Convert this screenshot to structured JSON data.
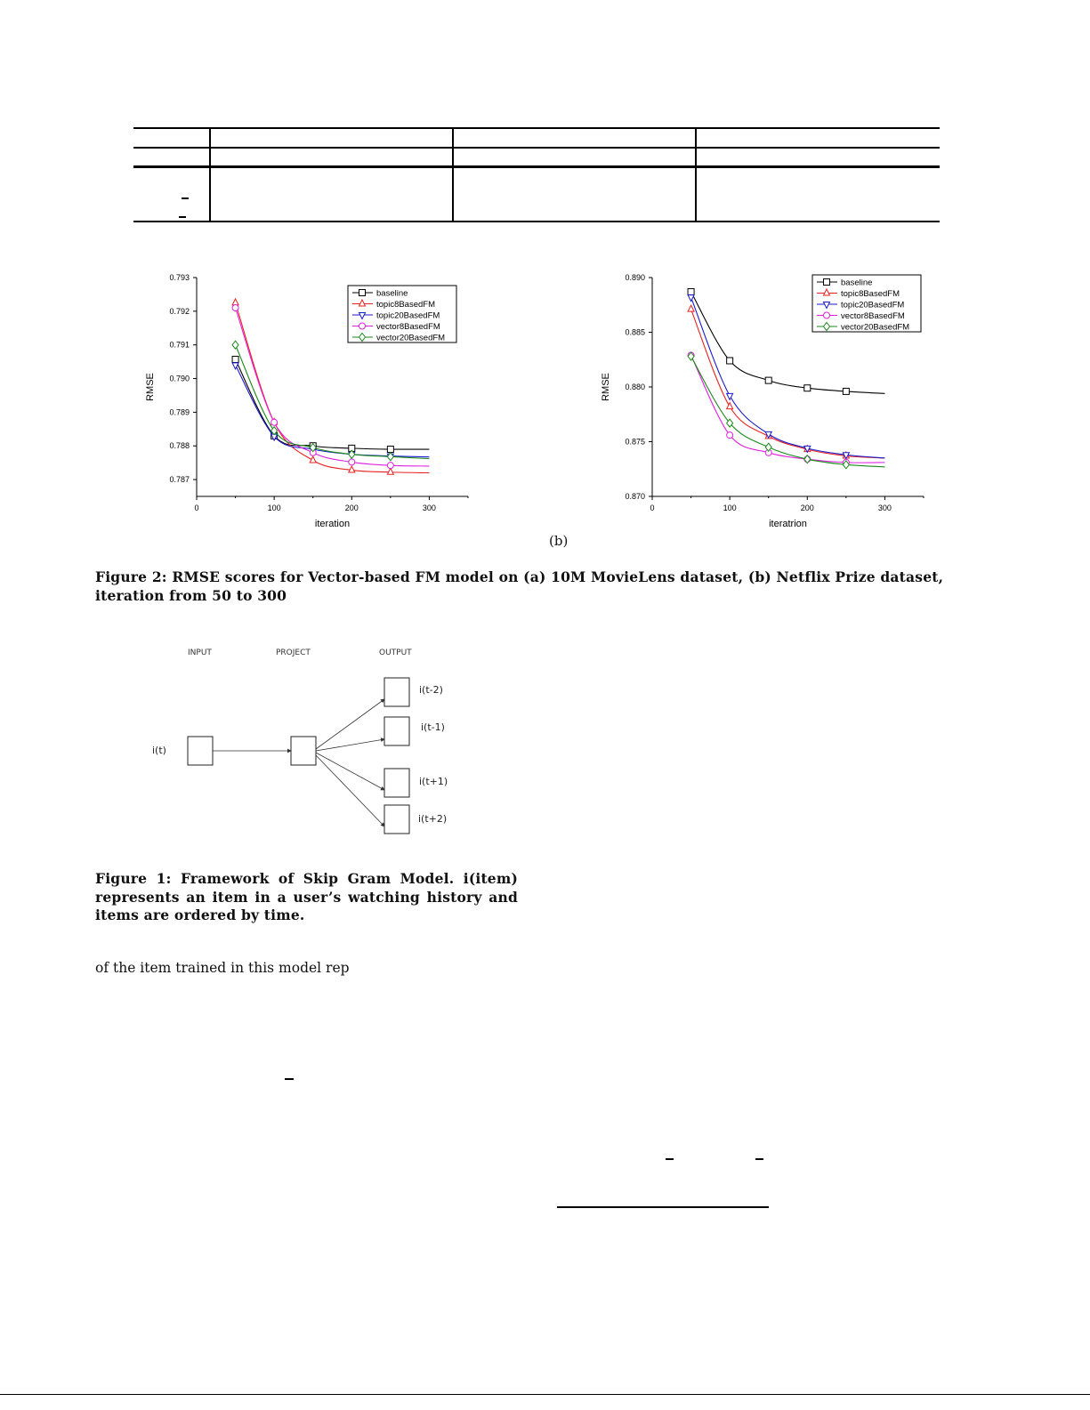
{
  "figure2": {
    "subcaption_b": "(b)",
    "caption": "Figure 2: RMSE scores for Vector-based FM model on (a) 10M MovieLens dataset, (b) Netflix Prize dataset, iteration from 50 to 300"
  },
  "figure1": {
    "caption": "Figure 1: Framework of Skip Gram Model. i(item) represents an item in a user’s watching history and items are ordered by time.",
    "headers": [
      "INPUT",
      "PROJECT",
      "OUTPUT"
    ],
    "input_label": "i(t)",
    "output_labels": [
      "i(t-2)",
      "i(t-1)",
      "i(t+1)",
      "i(t+2)"
    ]
  },
  "body_text": "of the item trained in this model rep",
  "chart_data": [
    {
      "type": "line",
      "xlabel": "iteration",
      "ylabel": "RMSE",
      "xlim": [
        0,
        350
      ],
      "ylim": [
        0.7865,
        0.793
      ],
      "xticks": [
        0,
        100,
        200,
        300
      ],
      "yticks": [
        "0.787",
        "0.788",
        "0.789",
        "0.790",
        "0.791",
        "0.792",
        "0.793"
      ],
      "legend": "top-right",
      "grid": false,
      "x": [
        50,
        100,
        150,
        200,
        250,
        300
      ],
      "series": [
        {
          "name": "baseline",
          "color": "#000000",
          "marker": "square",
          "values": [
            0.79057,
            0.7883,
            0.788,
            0.78793,
            0.7879,
            0.7879
          ]
        },
        {
          "name": "topic8BasedFM",
          "color": "#e8231f",
          "marker": "triangle-up",
          "values": [
            0.79225,
            0.7887,
            0.78757,
            0.78728,
            0.78722,
            0.7872
          ]
        },
        {
          "name": "topic20BasedFM",
          "color": "#1a1ad0",
          "marker": "triangle-down",
          "values": [
            0.7904,
            0.78828,
            0.7879,
            0.78775,
            0.7877,
            0.78767
          ]
        },
        {
          "name": "vector8BasedFM",
          "color": "#e020e0",
          "marker": "circle",
          "values": [
            0.7921,
            0.7887,
            0.7878,
            0.78752,
            0.78742,
            0.7874
          ]
        },
        {
          "name": "vector20BasedFM",
          "color": "#1a8a1a",
          "marker": "diamond",
          "values": [
            0.791,
            0.78845,
            0.78795,
            0.78775,
            0.78768,
            0.78762
          ]
        }
      ]
    },
    {
      "type": "line",
      "xlabel": "iteratrion",
      "ylabel": "RMSE",
      "xlim": [
        0,
        350
      ],
      "ylim": [
        0.87,
        0.89
      ],
      "xticks": [
        0,
        100,
        200,
        300
      ],
      "yticks": [
        "0.870",
        "0.875",
        "0.880",
        "0.885",
        "0.890"
      ],
      "legend": "top-right",
      "grid": false,
      "x": [
        50,
        100,
        150,
        200,
        250,
        300
      ],
      "series": [
        {
          "name": "baseline",
          "color": "#000000",
          "marker": "square",
          "values": [
            0.8887,
            0.8824,
            0.8806,
            0.8799,
            0.8796,
            0.8794
          ]
        },
        {
          "name": "topic8BasedFM",
          "color": "#e8231f",
          "marker": "triangle-up",
          "values": [
            0.8871,
            0.8782,
            0.8755,
            0.8743,
            0.8737,
            0.8735
          ]
        },
        {
          "name": "topic20BasedFM",
          "color": "#1a1ad0",
          "marker": "triangle-down",
          "values": [
            0.8882,
            0.8792,
            0.8757,
            0.8744,
            0.8738,
            0.8735
          ]
        },
        {
          "name": "vector8BasedFM",
          "color": "#e020e0",
          "marker": "circle",
          "values": [
            0.8829,
            0.8756,
            0.874,
            0.8734,
            0.8731,
            0.8731
          ]
        },
        {
          "name": "vector20BasedFM",
          "color": "#1a8a1a",
          "marker": "diamond",
          "values": [
            0.8828,
            0.8767,
            0.8745,
            0.8734,
            0.8729,
            0.8727
          ]
        }
      ]
    }
  ]
}
